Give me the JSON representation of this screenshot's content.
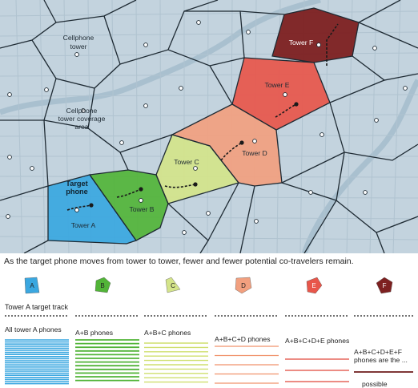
{
  "map": {
    "labels": {
      "cellphone_tower": "Cellphone tower",
      "coverage_area": "Cellphone tower coverage area",
      "target_phone": "Target phone",
      "tower_a": "Tower A",
      "tower_b": "Tower B",
      "tower_c": "Tower C",
      "tower_d": "Tower D",
      "tower_e": "Tower E",
      "tower_f": "Tower F"
    }
  },
  "caption": "As the target phone moves from tower to tower, fewer and fewer potential co-travelers remain.",
  "legend": {
    "shapes": [
      {
        "letter": "A",
        "color": "#3aa7e0"
      },
      {
        "letter": "B",
        "color": "#52b438"
      },
      {
        "letter": "C",
        "color": "#d4e48a"
      },
      {
        "letter": "D",
        "color": "#f2a07f"
      },
      {
        "letter": "E",
        "color": "#e8564a"
      },
      {
        "letter": "F",
        "color": "#7d2020"
      }
    ],
    "track_label": "Tower A target track",
    "groups": [
      {
        "label": "All tower A phones",
        "color": "#3aa7e0"
      },
      {
        "label": "A+B phones",
        "color": "#52b438"
      },
      {
        "label": "A+B+C phones",
        "color": "#cfdf6e"
      },
      {
        "label": "A+B+C+D phones",
        "color": "#f0926c"
      },
      {
        "label": "A+B+C+D+E phones",
        "color": "#e0483b"
      },
      {
        "label": "A+B+C+D+E+F phones are the ...",
        "color": "#6e1b1b"
      }
    ],
    "possible_text": "possible"
  }
}
